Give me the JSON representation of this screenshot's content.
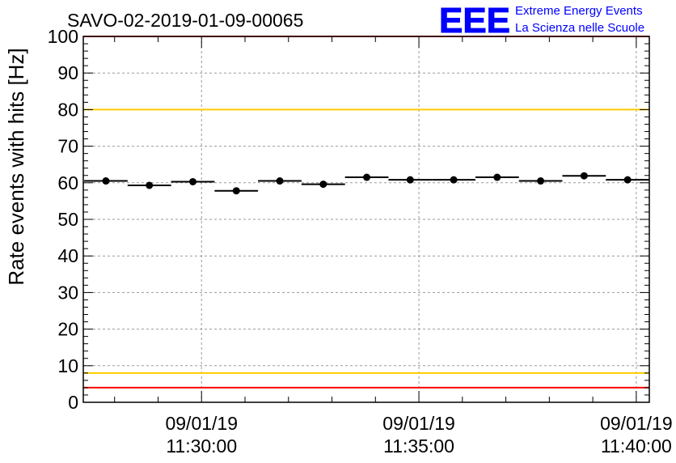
{
  "chart_data": {
    "type": "scatter",
    "title": "SAVO-02-2019-01-09-00065",
    "xlabel": "",
    "ylabel": "Rate events with hits [Hz]",
    "ylim": [
      0,
      100
    ],
    "y_ticks": [
      "0",
      "10",
      "20",
      "30",
      "40",
      "50",
      "60",
      "70",
      "80",
      "90",
      "100"
    ],
    "x_ticks": [
      {
        "date": "09/01/19",
        "time": "11:30:00"
      },
      {
        "date": "09/01/19",
        "time": "11:35:00"
      },
      {
        "date": "09/01/19",
        "time": "11:40:00"
      }
    ],
    "x_unit": "minutes since 11:30:00",
    "xlim": [
      -2.72,
      10.3
    ],
    "bin_width_min": 1.0,
    "series": [
      {
        "name": "rate",
        "x": [
          -2.2,
          -1.2,
          -0.2,
          0.8,
          1.8,
          2.8,
          3.8,
          4.8,
          5.8,
          6.8,
          7.8,
          8.8,
          9.8
        ],
        "y": [
          60.5,
          59.3,
          60.3,
          57.8,
          60.5,
          59.6,
          61.5,
          60.8,
          60.8,
          61.5,
          60.5,
          61.9,
          60.8
        ]
      }
    ],
    "reference_lines": [
      {
        "name": "upper-red",
        "value": 100,
        "color": "#ff0000"
      },
      {
        "name": "upper-yellow",
        "value": 80,
        "color": "#ffcc00"
      },
      {
        "name": "lower-yellow",
        "value": 8,
        "color": "#ffcc00"
      },
      {
        "name": "lower-red",
        "value": 4,
        "color": "#ff0000"
      }
    ],
    "grid": true
  },
  "logo": {
    "text": "EEE",
    "line1": "Extreme Energy Events",
    "line2": "La Scienza nelle Scuole",
    "color": "#0000ff"
  }
}
